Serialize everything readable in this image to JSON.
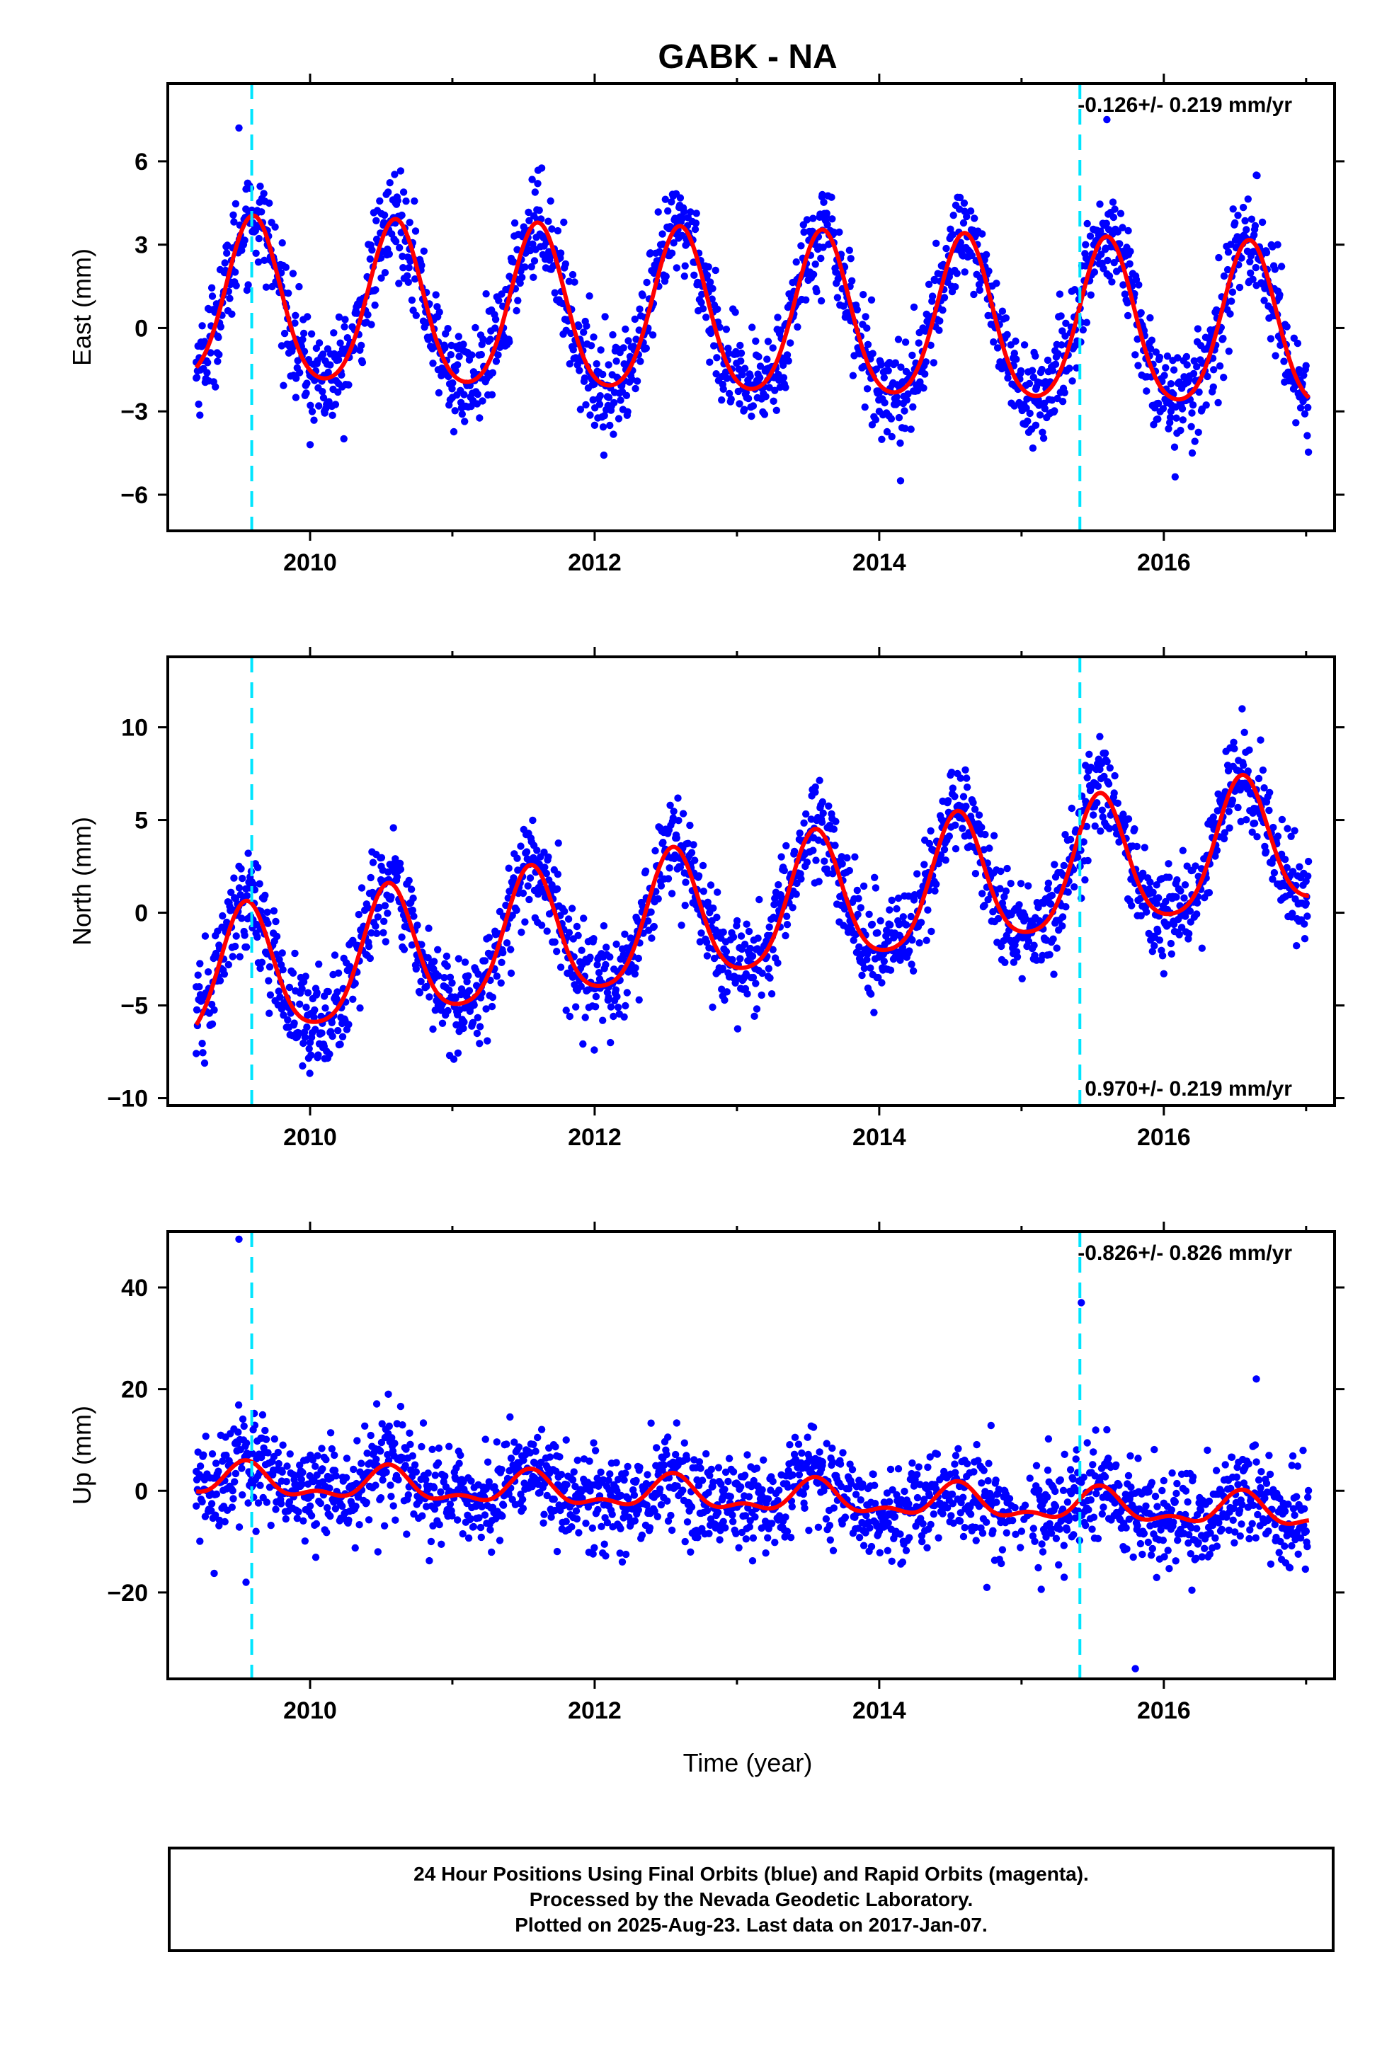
{
  "figure_title": "GABK - NA",
  "x_axis_label": "Time (year)",
  "footer": {
    "line1": "24 Hour Positions Using Final Orbits (blue) and Rapid Orbits (magenta).",
    "line2": "Processed by the Nevada Geodetic Laboratory.",
    "line3": "Plotted on 2025-Aug-23. Last data on 2017-Jan-07."
  },
  "colors": {
    "points": "#0000ff",
    "model": "#ff0000",
    "steps": "#00e5ff",
    "frame": "#000000"
  },
  "chart_data": [
    {
      "type": "scatter",
      "ylabel": "East (mm)",
      "rate_text": "-0.126+/- 0.219 mm/yr",
      "xlim": [
        2009.0,
        2017.2
      ],
      "ylim": [
        -7.3,
        8.8
      ],
      "xticks": [
        2010,
        2012,
        2014,
        2016
      ],
      "yticks": [
        -6,
        -3,
        0,
        3,
        6
      ],
      "step_times": [
        2009.59,
        2015.41
      ],
      "model": {
        "offset": 0.8,
        "trend": -0.126,
        "annual_amp": 2.9,
        "annual_peak": 0.6,
        "semi_amp": 0.4
      },
      "points": [
        [
          2009.2,
          -1.8
        ],
        [
          2009.35,
          -1.2
        ],
        [
          2009.45,
          0.5
        ],
        [
          2009.5,
          7.2
        ],
        [
          2009.55,
          5.0
        ],
        [
          2009.6,
          3.5
        ],
        [
          2009.7,
          3.0
        ],
        [
          2009.8,
          1.5
        ],
        [
          2009.9,
          -2.5
        ],
        [
          2010.0,
          -4.2
        ],
        [
          2010.1,
          -3.0
        ],
        [
          2010.2,
          -2.0
        ],
        [
          2010.35,
          -0.8
        ],
        [
          2010.5,
          1.8
        ],
        [
          2010.6,
          4.5
        ],
        [
          2010.7,
          3.8
        ],
        [
          2010.8,
          1.0
        ],
        [
          2010.9,
          -1.5
        ],
        [
          2011.0,
          -2.5
        ],
        [
          2011.2,
          -1.8
        ],
        [
          2011.4,
          -0.5
        ],
        [
          2011.55,
          3.5
        ],
        [
          2011.6,
          5.2
        ],
        [
          2011.75,
          2.5
        ],
        [
          2011.9,
          -0.5
        ],
        [
          2012.0,
          -3.5
        ],
        [
          2012.1,
          -2.5
        ],
        [
          2012.25,
          -1.2
        ],
        [
          2012.45,
          1.5
        ],
        [
          2012.6,
          4.0
        ],
        [
          2012.8,
          2.2
        ],
        [
          2013.0,
          -1.8
        ],
        [
          2013.2,
          -1.5
        ],
        [
          2013.4,
          0.5
        ],
        [
          2013.6,
          4.8
        ],
        [
          2013.8,
          2.5
        ],
        [
          2013.9,
          -0.8
        ],
        [
          2014.0,
          -3.0
        ],
        [
          2014.15,
          -5.5
        ],
        [
          2014.3,
          -1.5
        ],
        [
          2014.5,
          2.0
        ],
        [
          2014.6,
          4.2
        ],
        [
          2014.75,
          2.0
        ],
        [
          2014.95,
          -2.8
        ],
        [
          2015.1,
          -3.5
        ],
        [
          2015.3,
          -1.0
        ],
        [
          2015.45,
          3.0
        ],
        [
          2015.6,
          7.5
        ],
        [
          2015.75,
          3.5
        ],
        [
          2015.9,
          -1.0
        ],
        [
          2016.05,
          -3.0
        ],
        [
          2016.2,
          -4.5
        ],
        [
          2016.35,
          -1.5
        ],
        [
          2016.5,
          2.5
        ],
        [
          2016.65,
          5.5
        ],
        [
          2016.8,
          3.0
        ],
        [
          2016.95,
          -1.5
        ],
        [
          2017.0,
          -2.5
        ]
      ]
    },
    {
      "type": "scatter",
      "ylabel": "North (mm)",
      "rate_text": "0.970+/- 0.219 mm/yr",
      "xlim": [
        2009.0,
        2017.2
      ],
      "ylim": [
        -10.4,
        13.8
      ],
      "xticks": [
        2010,
        2012,
        2014,
        2016
      ],
      "yticks": [
        -10,
        -5,
        0,
        5,
        10
      ],
      "step_times": [
        2009.59,
        2015.41
      ],
      "model": {
        "offset": -3.8,
        "trend": 0.97,
        "annual_amp": 3.5,
        "annual_peak": 0.55,
        "semi_amp": 0.6
      },
      "points": [
        [
          2009.2,
          -4.0
        ],
        [
          2009.35,
          -1.0
        ],
        [
          2009.5,
          2.5
        ],
        [
          2009.65,
          -3.0
        ],
        [
          2009.8,
          -5.0
        ],
        [
          2010.0,
          -7.0
        ],
        [
          2010.1,
          -4.5
        ],
        [
          2010.3,
          -1.5
        ],
        [
          2010.5,
          2.5
        ],
        [
          2010.7,
          0.5
        ],
        [
          2010.9,
          -5.0
        ],
        [
          2011.1,
          -4.5
        ],
        [
          2011.3,
          -1.0
        ],
        [
          2011.5,
          2.5
        ],
        [
          2011.7,
          1.5
        ],
        [
          2011.9,
          -3.5
        ],
        [
          2012.1,
          -4.0
        ],
        [
          2012.3,
          -1.0
        ],
        [
          2012.5,
          4.5
        ],
        [
          2012.7,
          2.0
        ],
        [
          2012.9,
          -3.0
        ],
        [
          2013.1,
          -3.5
        ],
        [
          2013.3,
          0.5
        ],
        [
          2013.55,
          6.5
        ],
        [
          2013.75,
          1.0
        ],
        [
          2013.95,
          -2.0
        ],
        [
          2014.1,
          -2.5
        ],
        [
          2014.3,
          1.0
        ],
        [
          2014.55,
          7.5
        ],
        [
          2014.75,
          2.0
        ],
        [
          2014.95,
          -1.5
        ],
        [
          2015.2,
          0.5
        ],
        [
          2015.45,
          6.0
        ],
        [
          2015.55,
          9.5
        ],
        [
          2015.75,
          3.0
        ],
        [
          2015.95,
          0.5
        ],
        [
          2016.15,
          1.5
        ],
        [
          2016.35,
          4.0
        ],
        [
          2016.55,
          11.0
        ],
        [
          2016.7,
          6.0
        ],
        [
          2016.9,
          1.5
        ],
        [
          2017.0,
          0.5
        ]
      ]
    },
    {
      "type": "scatter",
      "ylabel": "Up (mm)",
      "rate_text": "-0.826+/- 0.826 mm/yr",
      "xlim": [
        2009.0,
        2017.2
      ],
      "ylim": [
        -37,
        51
      ],
      "xticks": [
        2010,
        2012,
        2014,
        2016
      ],
      "yticks": [
        -20,
        0,
        20,
        40
      ],
      "step_times": [
        2009.59,
        2015.41
      ],
      "model": {
        "offset": 2.0,
        "trend": -0.826,
        "annual_amp": 2.8,
        "annual_peak": 0.55,
        "semi_amp": 1.5
      },
      "points": [
        [
          2009.2,
          -3.0
        ],
        [
          2009.4,
          2.0
        ],
        [
          2009.5,
          49.5
        ],
        [
          2009.55,
          -18.0
        ],
        [
          2009.6,
          12.0
        ],
        [
          2009.8,
          4.0
        ],
        [
          2010.0,
          -3.0
        ],
        [
          2010.3,
          1.0
        ],
        [
          2010.55,
          19.0
        ],
        [
          2010.8,
          3.0
        ],
        [
          2011.1,
          -2.0
        ],
        [
          2011.5,
          6.0
        ],
        [
          2011.8,
          10.0
        ],
        [
          2012.1,
          -3.0
        ],
        [
          2012.5,
          8.0
        ],
        [
          2012.9,
          0.0
        ],
        [
          2013.2,
          -6.0
        ],
        [
          2013.6,
          5.0
        ],
        [
          2014.0,
          -8.0
        ],
        [
          2014.3,
          -10.0
        ],
        [
          2014.6,
          6.0
        ],
        [
          2014.9,
          -2.0
        ],
        [
          2015.15,
          -12.0
        ],
        [
          2015.3,
          -17.0
        ],
        [
          2015.42,
          37.0
        ],
        [
          2015.6,
          12.0
        ],
        [
          2015.8,
          -35.0
        ],
        [
          2016.0,
          2.0
        ],
        [
          2016.3,
          -5.0
        ],
        [
          2016.65,
          22.0
        ],
        [
          2016.9,
          5.0
        ],
        [
          2017.0,
          -8.0
        ]
      ]
    }
  ]
}
